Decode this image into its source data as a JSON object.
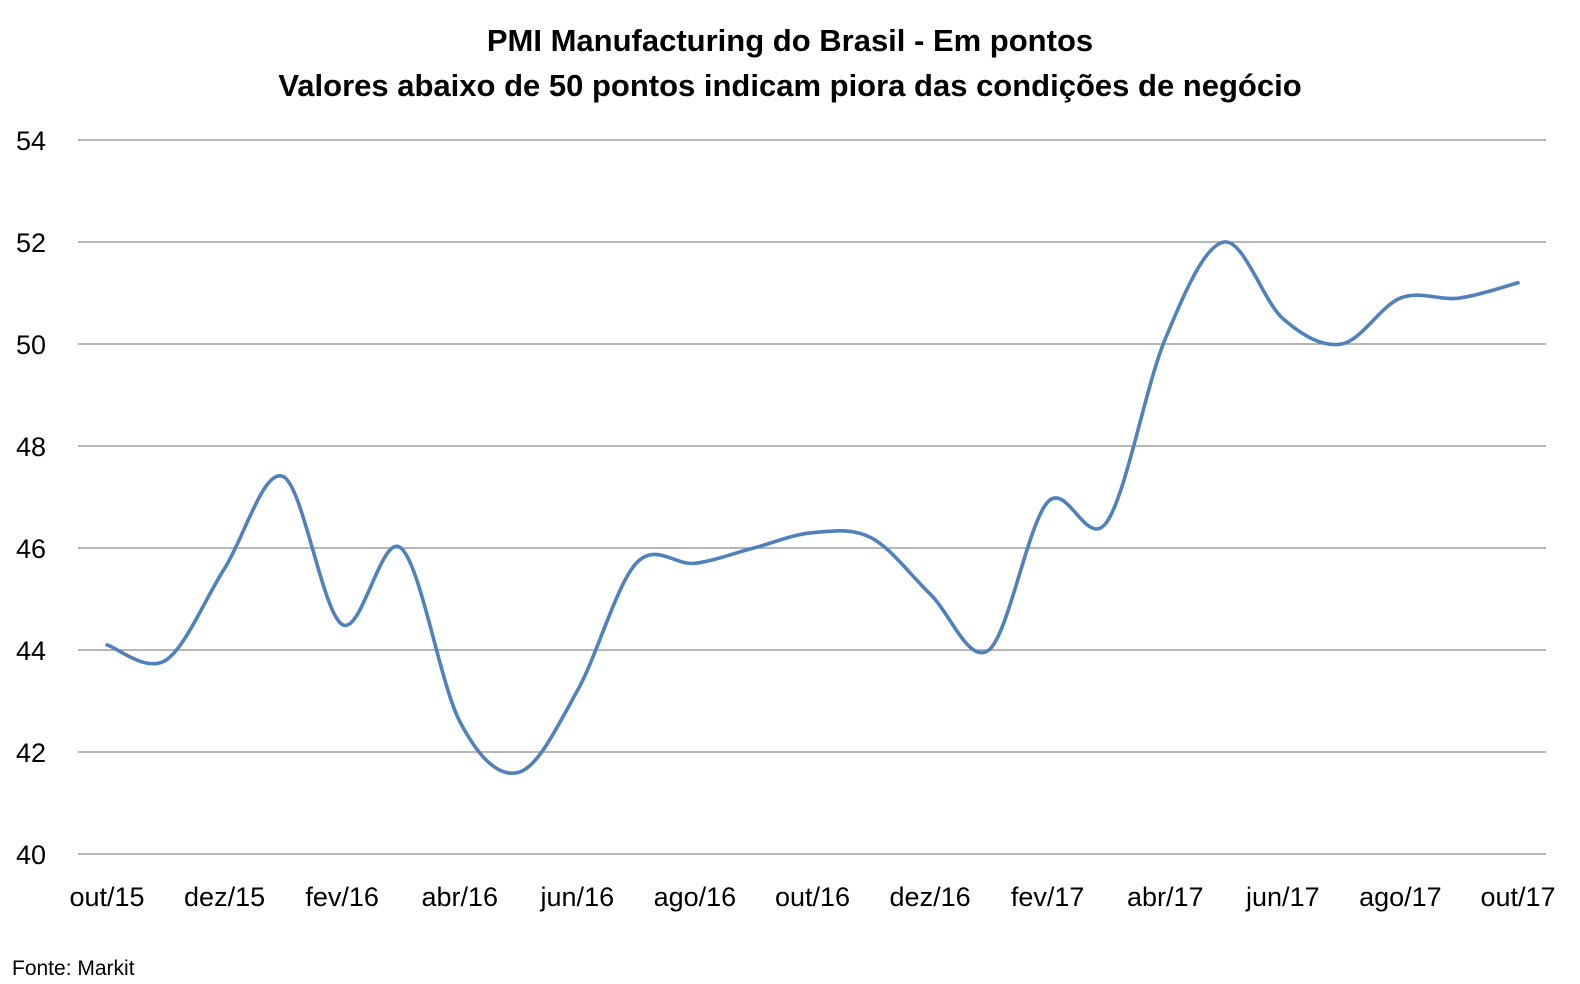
{
  "chart_data": {
    "type": "line",
    "title": "PMI Manufacturing do Brasil - Em pontos",
    "subtitle": "Valores abaixo de 50 pontos indicam piora das condições de negócio",
    "xlabel": "",
    "ylabel": "",
    "ylim": [
      40,
      54
    ],
    "yticks": [
      40,
      42,
      44,
      46,
      48,
      50,
      52,
      54
    ],
    "grid": true,
    "legend": "none",
    "x": [
      "out/15",
      "nov/15",
      "dez/15",
      "jan/16",
      "fev/16",
      "mar/16",
      "abr/16",
      "mai/16",
      "jun/16",
      "jul/16",
      "ago/16",
      "set/16",
      "out/16",
      "nov/16",
      "dez/16",
      "jan/17",
      "fev/17",
      "mar/17",
      "abr/17",
      "mai/17",
      "jun/17",
      "jul/17",
      "ago/17",
      "set/17",
      "out/17"
    ],
    "xtick_labels": [
      "out/15",
      "dez/15",
      "fev/16",
      "abr/16",
      "jun/16",
      "ago/16",
      "out/16",
      "dez/16",
      "fev/17",
      "abr/17",
      "jun/17",
      "ago/17",
      "out/17"
    ],
    "series": [
      {
        "color": "#4f81bd",
        "values": [
          44.1,
          43.8,
          45.6,
          47.4,
          44.5,
          46.0,
          42.6,
          41.6,
          43.2,
          45.7,
          45.7,
          46.0,
          46.3,
          46.2,
          45.1,
          44.0,
          46.9,
          46.5,
          50.1,
          52.0,
          50.5,
          50.0,
          50.9,
          50.9,
          51.2
        ]
      }
    ],
    "source": "Fonte: Markit"
  }
}
